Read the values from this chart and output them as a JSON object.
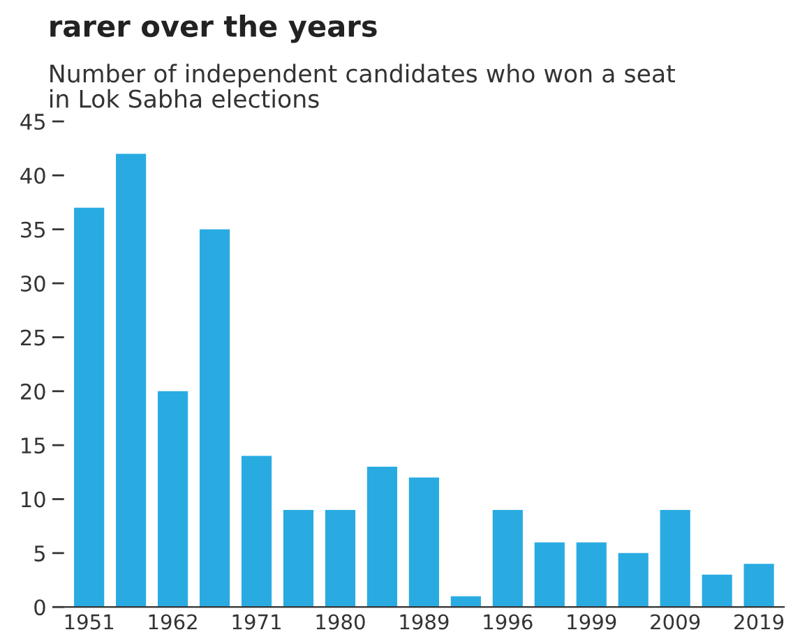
{
  "chart_data": {
    "type": "bar",
    "title": "rarer over the years",
    "subtitle": "Number of independent candidates who won a seat\nin Lok Sabha elections",
    "categories": [
      "1951",
      null,
      "1962",
      null,
      "1971",
      null,
      "1980",
      null,
      "1989",
      null,
      "1996",
      null,
      "1999",
      null,
      "2009",
      null,
      "2019"
    ],
    "values": [
      37,
      42,
      20,
      35,
      14,
      9,
      9,
      13,
      12,
      1,
      9,
      6,
      6,
      5,
      9,
      3,
      4
    ],
    "color": "#29abe2",
    "ylim": [
      0,
      45
    ],
    "yticks": [
      0,
      5,
      10,
      15,
      20,
      25,
      30,
      35,
      40,
      45
    ],
    "grid": false
  }
}
